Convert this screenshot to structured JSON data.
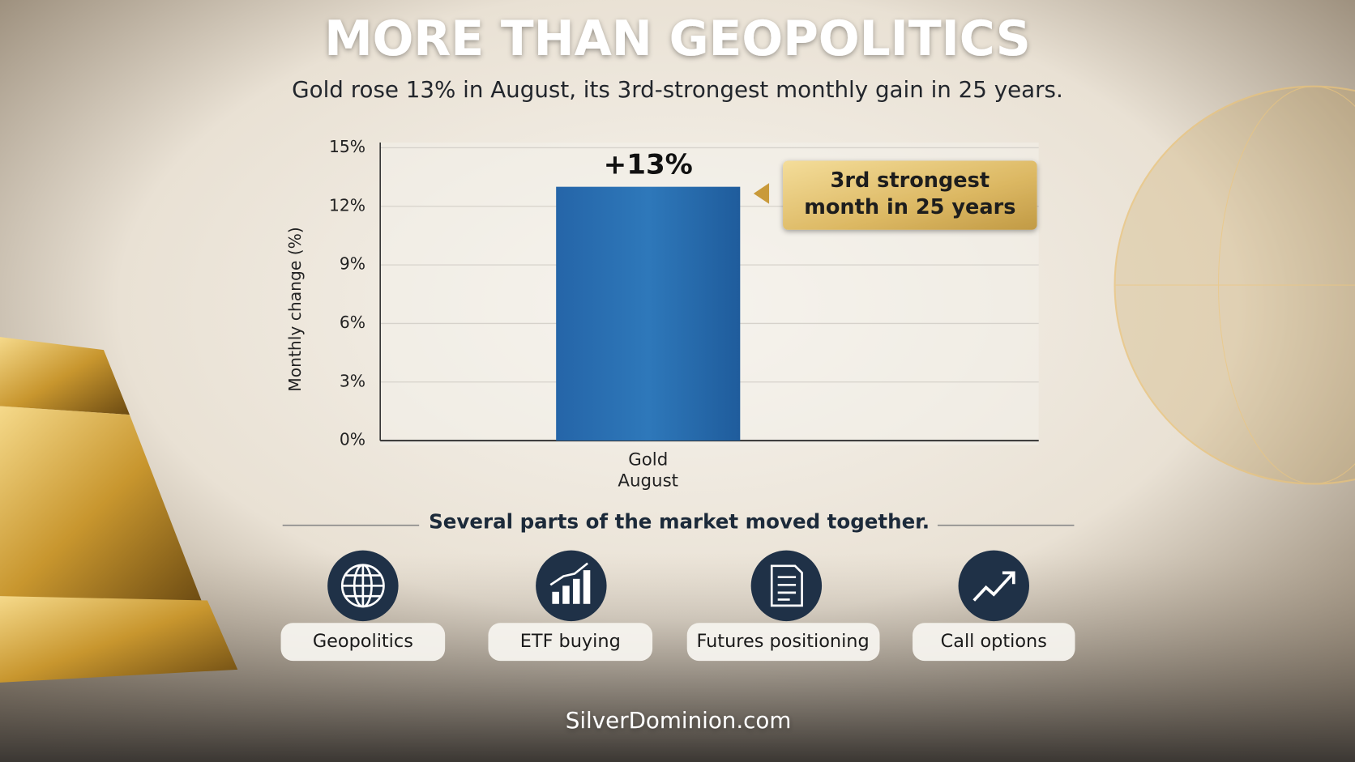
{
  "chart_data": {
    "type": "bar",
    "title": "MORE THAN GEOPOLITICS",
    "subtitle": "Gold rose 13% in August, its 3rd-strongest monthly gain in 25 years.",
    "ylabel": "Monthly change (%)",
    "categories": [
      "Gold"
    ],
    "category_sublabels": [
      "August"
    ],
    "values": [
      13
    ],
    "value_labels": [
      "+13%"
    ],
    "color": "#2a6db0",
    "ylim": [
      0,
      15
    ],
    "yticks": [
      {
        "value": 0,
        "label": "0%"
      },
      {
        "value": 3,
        "label": "3%"
      },
      {
        "value": 6,
        "label": "6%"
      },
      {
        "value": 9,
        "label": "9%"
      },
      {
        "value": 12,
        "label": "12%"
      },
      {
        "value": 15,
        "label": "15%"
      }
    ],
    "grid": true,
    "annotation": [
      "3rd strongest",
      "month in 25 years"
    ]
  },
  "drivers": {
    "heading": "Several parts of the market moved together.",
    "items": [
      "Geopolitics",
      "ETF buying",
      "Futures positioning",
      "Call options"
    ]
  },
  "footer": "SilverDominion.com"
}
